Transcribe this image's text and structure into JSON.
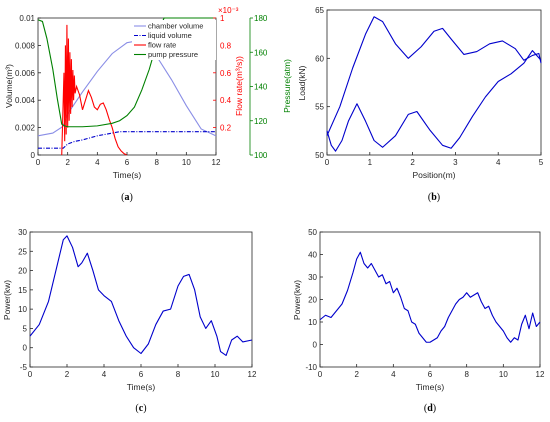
{
  "colors": {
    "axis": "#262626",
    "blue": "#0000cc",
    "lightblue": "#8a8ee6",
    "red": "#ff0000",
    "green": "#008000"
  },
  "chart_data": [
    {
      "id": "a",
      "caption": "a",
      "type": "line",
      "xlabel": "Time(s)",
      "xlim": [
        0,
        12
      ],
      "xticks": [
        0,
        2,
        4,
        6,
        8,
        10,
        12
      ],
      "axes": {
        "left": {
          "label": "Volume(m³)",
          "ylim": [
            0,
            0.01
          ],
          "ticks": [
            0,
            0.002,
            0.004,
            0.006,
            0.008,
            0.01
          ],
          "tick_labels": [
            "0",
            "0.002",
            "0.004",
            "0.006",
            "0.008",
            "0.01"
          ]
        },
        "right_inner": {
          "label": "Flow rate(m³/s))",
          "multiplier": "×10⁻³",
          "ylim": [
            0,
            1
          ],
          "ticks": [
            0.2,
            0.4,
            0.6,
            0.8,
            1
          ],
          "tick_labels": [
            "0.2",
            "0.4",
            "0.6",
            "0.8",
            "1"
          ]
        },
        "right_outer": {
          "label": "Pressure(atm)",
          "ylim": [
            100,
            180
          ],
          "ticks": [
            100,
            120,
            140,
            160,
            180
          ],
          "tick_labels": [
            "100",
            "120",
            "140",
            "160",
            "180"
          ]
        }
      },
      "legend": {
        "placement": "top-right"
      },
      "series": [
        {
          "name": "chamber volume",
          "axis": "left",
          "color": "#8a8ee6",
          "style": "solid",
          "x": [
            0,
            1,
            1.7,
            2,
            3,
            4,
            5,
            6,
            6.5,
            7,
            8,
            9,
            10,
            11,
            12
          ],
          "y": [
            0.0014,
            0.0016,
            0.0021,
            0.003,
            0.0046,
            0.0061,
            0.0074,
            0.0082,
            0.0083,
            0.0081,
            0.0072,
            0.0055,
            0.0036,
            0.0019,
            0.0014
          ]
        },
        {
          "name": "liquid volume",
          "axis": "left",
          "color": "#0000cc",
          "style": "dashdot",
          "x": [
            0,
            1.5,
            1.7,
            2,
            2.5,
            3,
            4,
            5,
            5.5,
            6,
            12
          ],
          "y": [
            0.0005,
            0.0005,
            0.0005,
            0.0008,
            0.001,
            0.0011,
            0.0014,
            0.0016,
            0.0017,
            0.0017,
            0.0017
          ]
        },
        {
          "name": "flow rate",
          "axis": "right_inner",
          "color": "#ff0000",
          "style": "solid",
          "x": [
            1.6,
            1.75,
            1.8,
            1.85,
            1.9,
            1.95,
            2.0,
            2.05,
            2.1,
            2.15,
            2.2,
            2.25,
            2.3,
            2.35,
            2.4,
            2.45,
            2.5,
            2.6,
            2.8,
            3.0,
            3.2,
            3.4,
            3.6,
            3.8,
            4.0,
            4.2,
            4.4,
            4.6,
            4.8,
            5.0,
            5.2,
            5.4,
            5.6,
            5.8,
            6.0
          ],
          "y": [
            0.0,
            0.6,
            0.1,
            0.8,
            0.15,
            0.95,
            0.2,
            0.85,
            0.25,
            0.75,
            0.3,
            0.7,
            0.35,
            0.62,
            0.4,
            0.58,
            0.45,
            0.5,
            0.44,
            0.33,
            0.4,
            0.47,
            0.42,
            0.35,
            0.33,
            0.37,
            0.38,
            0.33,
            0.26,
            0.2,
            0.12,
            0.06,
            0.03,
            0.01,
            0.0
          ]
        },
        {
          "name": "pump pressure",
          "axis": "right_outer",
          "color": "#008000",
          "style": "solid",
          "x": [
            0,
            0.3,
            0.6,
            1.0,
            1.3,
            1.6,
            1.8,
            2.0,
            3.0,
            4.0,
            5.0,
            5.5,
            6.0,
            6.5,
            7.0,
            7.5,
            8.0,
            8.3,
            8.5,
            9.0,
            10.0,
            11.0,
            12.0
          ],
          "y": [
            179,
            178,
            168,
            150,
            133,
            118,
            117,
            116.5,
            116.5,
            117,
            118.5,
            120,
            123,
            128,
            138,
            150,
            165,
            176,
            180,
            180,
            180,
            180,
            180
          ]
        }
      ]
    },
    {
      "id": "b",
      "caption": "b",
      "type": "line",
      "xlabel": "Position(m)",
      "ylabel": "Load(kN)",
      "xlim": [
        0,
        5
      ],
      "ylim": [
        50,
        65
      ],
      "xticks": [
        0,
        1,
        2,
        3,
        4,
        5
      ],
      "yticks": [
        50,
        55,
        60,
        65
      ],
      "series": [
        {
          "color": "#0000cc",
          "x": [
            0,
            0.3,
            0.6,
            0.9,
            1.1,
            1.3,
            1.6,
            1.9,
            2.2,
            2.5,
            2.7,
            2.9,
            3.2,
            3.5,
            3.8,
            4.1,
            4.4,
            4.6,
            4.8,
            4.95,
            5.0
          ],
          "y": [
            52,
            55,
            59,
            62.5,
            64.3,
            63.8,
            61.5,
            60,
            61.2,
            62.8,
            63.1,
            62,
            60.4,
            60.7,
            61.5,
            61.8,
            61,
            59.8,
            60.3,
            60.5,
            59.5
          ]
        },
        {
          "color": "#0000cc",
          "x": [
            0,
            0.1,
            0.2,
            0.35,
            0.5,
            0.7,
            0.9,
            1.1,
            1.3,
            1.6,
            1.9,
            2.1,
            2.4,
            2.7,
            2.9,
            3.1,
            3.4,
            3.7,
            4.0,
            4.3,
            4.6,
            4.8,
            5.0
          ],
          "y": [
            52.5,
            51,
            50.4,
            51.5,
            53.5,
            55.3,
            53.5,
            51.5,
            50.8,
            52,
            54.2,
            54.5,
            52.6,
            51,
            50.7,
            51.8,
            54,
            56,
            57.6,
            58.4,
            59.5,
            60.8,
            59.8
          ]
        }
      ]
    },
    {
      "id": "c",
      "caption": "c",
      "type": "line",
      "xlabel": "Time(s)",
      "ylabel": "Power(kw)",
      "xlim": [
        0,
        12
      ],
      "ylim": [
        -5,
        30
      ],
      "xticks": [
        0,
        2,
        4,
        6,
        8,
        10,
        12
      ],
      "yticks": [
        -5,
        0,
        5,
        10,
        15,
        20,
        25,
        30
      ],
      "series": [
        {
          "color": "#0000cc",
          "x": [
            0,
            0.5,
            1.0,
            1.5,
            1.8,
            2.0,
            2.3,
            2.6,
            2.8,
            3.1,
            3.4,
            3.7,
            4.0,
            4.4,
            4.8,
            5.2,
            5.6,
            6.0,
            6.4,
            6.8,
            7.2,
            7.6,
            8.0,
            8.3,
            8.6,
            8.9,
            9.2,
            9.5,
            9.8,
            10.1,
            10.3,
            10.6,
            10.9,
            11.2,
            11.5,
            12.0
          ],
          "y": [
            3,
            6,
            12,
            22,
            28,
            29,
            26,
            21,
            22,
            24.5,
            20,
            15,
            13.5,
            12,
            7,
            3,
            0,
            -1.5,
            1,
            6,
            9.5,
            10,
            16,
            18.5,
            19,
            15,
            8,
            5,
            7,
            3,
            -1,
            -2,
            2,
            3,
            1.5,
            2
          ]
        }
      ]
    },
    {
      "id": "d",
      "caption": "d",
      "type": "line",
      "xlabel": "Time(s)",
      "ylabel": "Power(kw)",
      "xlim": [
        0,
        12
      ],
      "ylim": [
        -10,
        50
      ],
      "xticks": [
        0,
        2,
        4,
        6,
        8,
        10,
        12
      ],
      "yticks": [
        -10,
        0,
        10,
        20,
        30,
        40,
        50
      ],
      "series": [
        {
          "color": "#0000cc",
          "x": [
            0,
            0.3,
            0.6,
            0.9,
            1.2,
            1.5,
            1.8,
            2.0,
            2.2,
            2.4,
            2.6,
            2.8,
            3.0,
            3.2,
            3.4,
            3.6,
            3.8,
            4.0,
            4.2,
            4.4,
            4.6,
            4.8,
            5.0,
            5.2,
            5.4,
            5.6,
            5.8,
            6.0,
            6.2,
            6.4,
            6.6,
            6.8,
            7.0,
            7.2,
            7.4,
            7.6,
            7.8,
            8.0,
            8.2,
            8.4,
            8.6,
            8.8,
            9.0,
            9.2,
            9.4,
            9.6,
            9.8,
            10.0,
            10.2,
            10.4,
            10.6,
            10.8,
            11.0,
            11.2,
            11.4,
            11.6,
            11.8,
            12.0
          ],
          "y": [
            11,
            13,
            12,
            15,
            18,
            24,
            32,
            38,
            41,
            36,
            34,
            36,
            33,
            30,
            31,
            27,
            28,
            23,
            25,
            21,
            16,
            15,
            10,
            9,
            5,
            3,
            1,
            1,
            2,
            3,
            6,
            8,
            12,
            15,
            18,
            20,
            21,
            23,
            21,
            22,
            23,
            19,
            16,
            17,
            13,
            10,
            8,
            6,
            3,
            1,
            3,
            2,
            9,
            13,
            7,
            14,
            8,
            10
          ]
        }
      ]
    }
  ]
}
